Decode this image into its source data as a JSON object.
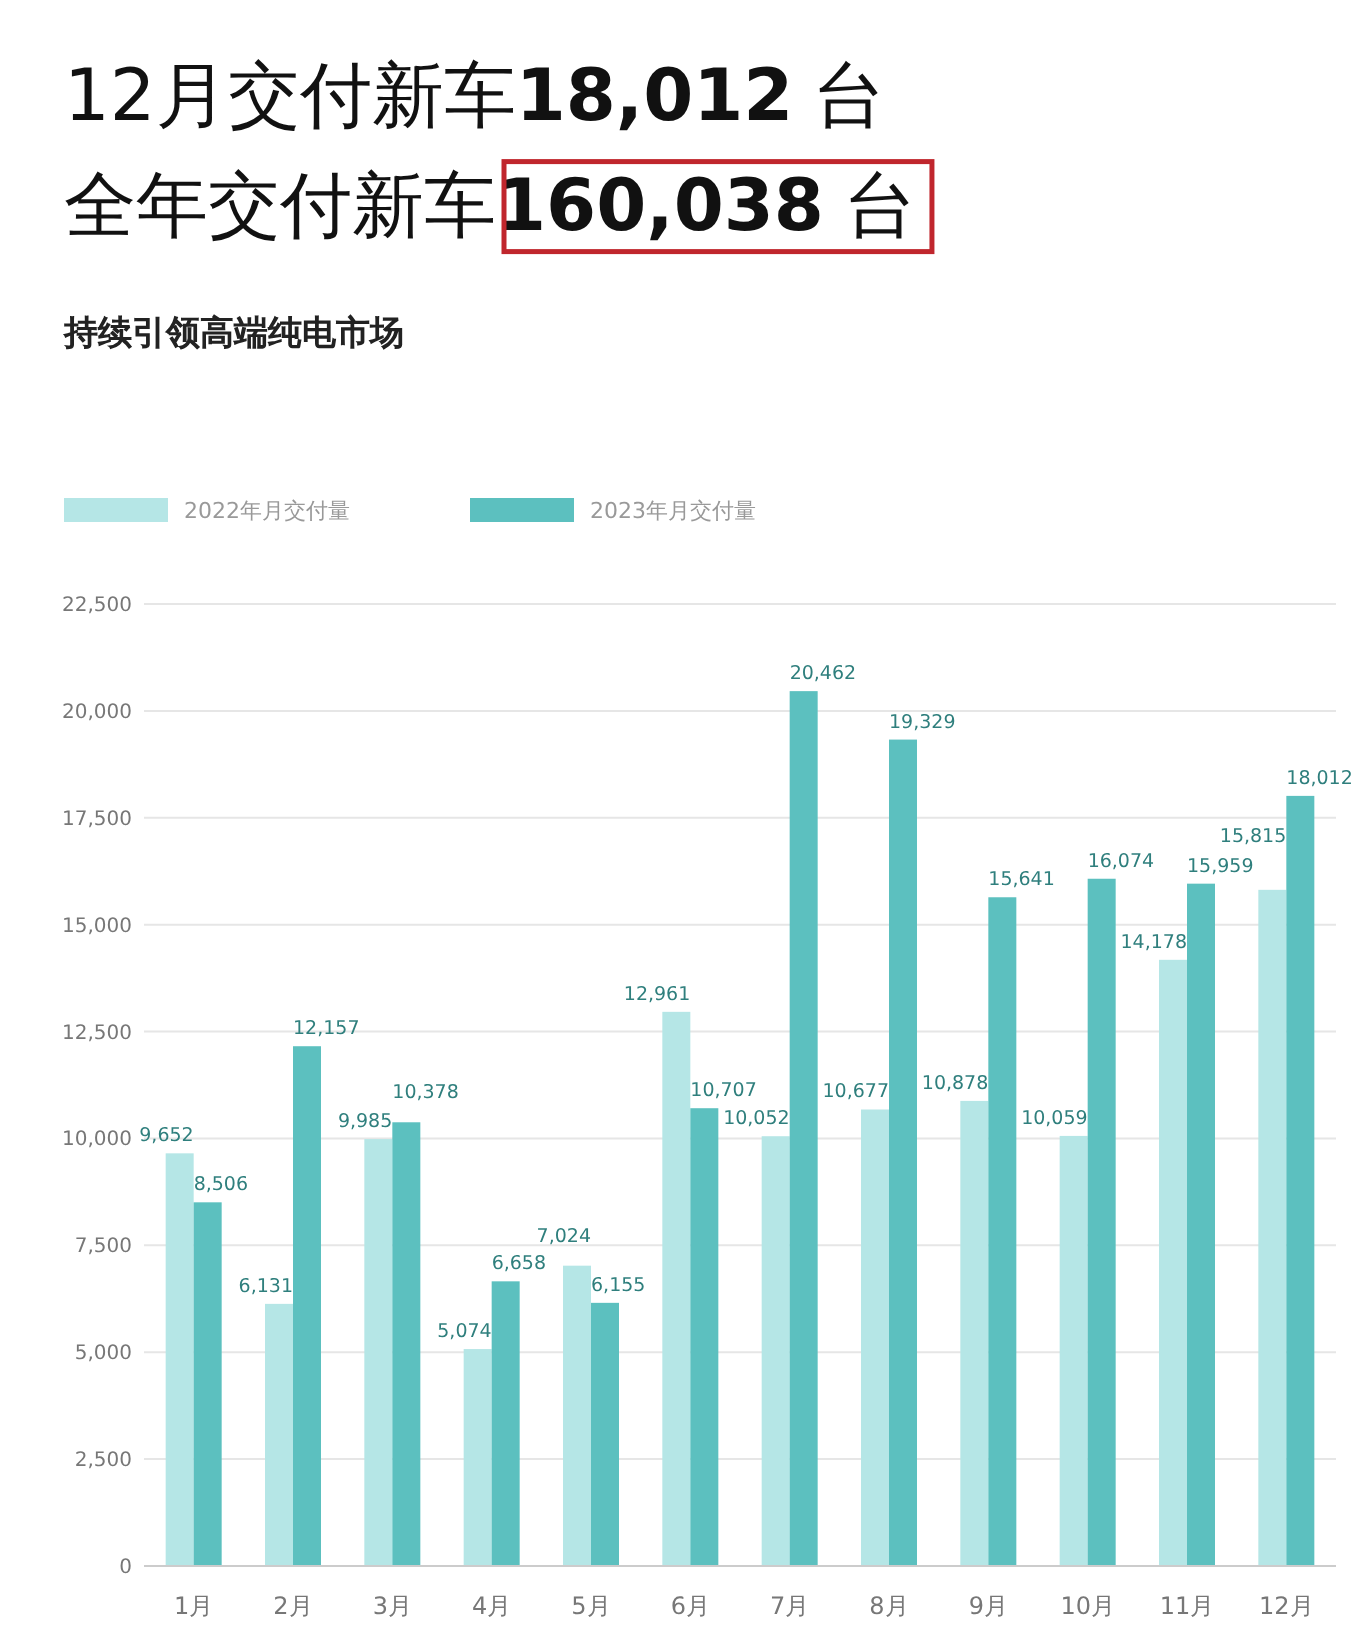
{
  "chart_data": {
    "type": "bar",
    "title": "12月交付新车**18,012**台",
    "subtitle": "全年交付新车**160,038**台",
    "annotations": [
      "持续引领高端纯电市场"
    ],
    "categories": [
      "1月",
      "2月",
      "3月",
      "4月",
      "5月",
      "6月",
      "7月",
      "8月",
      "9月",
      "10月",
      "11月",
      "12月"
    ],
    "series": [
      {
        "name": "2022年月交付量",
        "color": "#b5e6e6",
        "values": [
          9652,
          6131,
          9985,
          5074,
          7024,
          12961,
          10052,
          10677,
          10878,
          10059,
          14178,
          15815
        ],
        "value_labels": [
          "9,652",
          "6,131",
          "9,985",
          "5,074",
          "7,024",
          "12,961",
          "10,052",
          "10,677",
          "10,878",
          "10,059",
          "14,178",
          "15,815"
        ]
      },
      {
        "name": "2023年月交付量",
        "color": "#5cc0bf",
        "values": [
          8506,
          12157,
          10378,
          6658,
          6155,
          10707,
          20462,
          19329,
          15641,
          16074,
          15959,
          18012
        ],
        "value_labels": [
          "8,506",
          "12,157",
          "10,378",
          "6,658",
          "6,155",
          "10,707",
          "20,462",
          "19,329",
          "15,641",
          "16,074",
          "15,959",
          "18,012"
        ]
      }
    ],
    "ylim": [
      0,
      22500
    ],
    "yticks": [
      0,
      {
        "value": 2500,
        "label": "2,500"
      },
      {
        "value": 5000,
        "label": "5,000"
      },
      {
        "value": 7500,
        "label": "7,500"
      },
      {
        "value": 10000,
        "label": "10,000"
      },
      {
        "value": 12500,
        "label": "12,500"
      },
      {
        "value": 15000,
        "label": "15,000"
      },
      {
        "value": 17500,
        "label": "17,500"
      },
      {
        "value": 20000,
        "label": "20,000"
      },
      {
        "value": 22500,
        "label": "22,500"
      }
    ],
    "grid": "y",
    "legend": "top left",
    "data_labels": true
  }
}
